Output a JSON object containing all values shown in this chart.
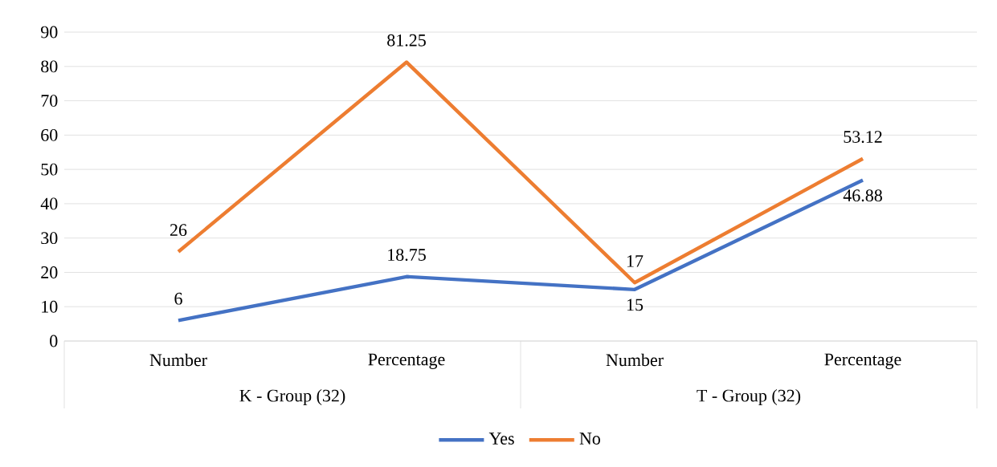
{
  "chart_data": {
    "type": "line",
    "categories": [
      "Number",
      "Percentage",
      "Number",
      "Percentage"
    ],
    "series": [
      {
        "name": "Yes",
        "color": "#4472c4",
        "values": [
          6,
          18.75,
          15,
          46.88
        ]
      },
      {
        "name": "No",
        "color": "#ed7d31",
        "values": [
          26,
          81.25,
          17,
          53.12
        ]
      }
    ],
    "annotations": [
      "K - Group (32)",
      "T - Group (32)"
    ],
    "ylim": [
      0,
      90
    ],
    "yticks": [
      0,
      10,
      20,
      30,
      40,
      50,
      60,
      70,
      80,
      90
    ],
    "grid": "y",
    "legend": "bottom",
    "data_labels": true,
    "marker": "none",
    "line_style": "solid"
  }
}
